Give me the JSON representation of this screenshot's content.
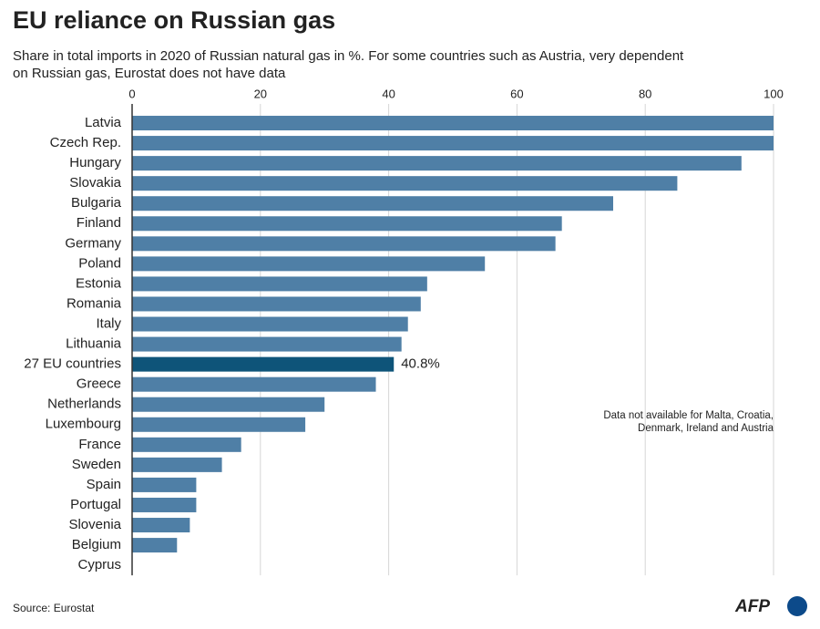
{
  "chart_data": {
    "type": "hbar",
    "title": "EU reliance on Russian gas",
    "subtitle": [
      "Share in total imports in 2020 of Russian natural gas in %. For some countries such as Austria, very dependent",
      "on Russian gas, Eurostat does not have data"
    ],
    "categories": [
      "Latvia",
      "Czech Rep.",
      "Hungary",
      "Slovakia",
      "Bulgaria",
      "Finland",
      "Germany",
      "Poland",
      "Estonia",
      "Romania",
      "Italy",
      "Lithuania",
      "27 EU countries",
      "Greece",
      "Netherlands",
      "Luxembourg",
      "France",
      "Sweden",
      "Spain",
      "Portugal",
      "Slovenia",
      "Belgium",
      "Cyprus"
    ],
    "values": [
      100,
      100,
      95,
      85,
      75,
      67,
      66,
      55,
      46,
      45,
      43,
      42,
      40.8,
      38,
      30,
      27,
      17,
      14,
      10,
      10,
      9,
      7,
      0
    ],
    "value_labels": [
      null,
      null,
      null,
      null,
      null,
      null,
      null,
      null,
      null,
      null,
      null,
      null,
      "40.8%",
      null,
      null,
      null,
      null,
      null,
      null,
      null,
      null,
      null,
      null
    ],
    "color": "#4f7fa6",
    "highlight": {
      "index": 12,
      "bar_color": "#0e5479",
      "label_color": "#5b8fbb"
    },
    "xlim": [
      0,
      100
    ],
    "xticks": [
      0,
      20,
      40,
      60,
      80,
      100
    ],
    "grid": true,
    "note": [
      "Data not available for Malta, Croatia,",
      "Denmark, Ireland and Austria"
    ],
    "source": "Source: Eurostat",
    "logo": "AFP"
  }
}
